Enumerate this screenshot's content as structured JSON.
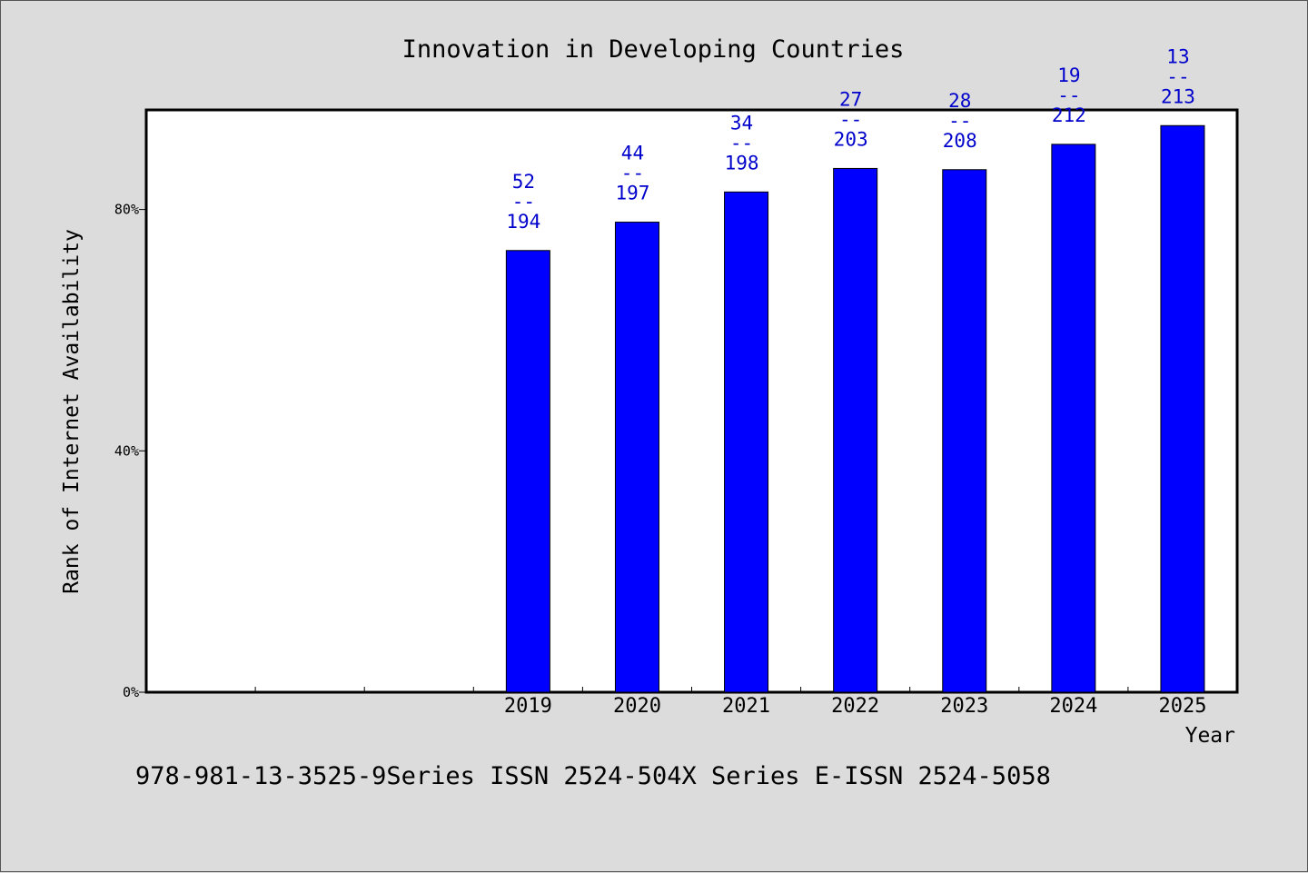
{
  "chart_data": {
    "type": "bar",
    "title": "Innovation in Developing Countries",
    "xlabel": "Year",
    "ylabel": "Rank of Internet Availability",
    "y_tick_labels": [
      "0%",
      "40%",
      "80%"
    ],
    "y_tick_values": [
      0,
      40,
      80
    ],
    "ylim": [
      0,
      96.5
    ],
    "x_slots": 10,
    "categories": [
      "2019",
      "2020",
      "2021",
      "2022",
      "2023",
      "2024",
      "2025"
    ],
    "first_category_slot": 3,
    "values": [
      73.2,
      77.9,
      82.9,
      86.8,
      86.6,
      90.8,
      93.9
    ],
    "data_labels": [
      {
        "top": "52",
        "sep": "--",
        "bottom": "194"
      },
      {
        "top": "44",
        "sep": "--",
        "bottom": "197"
      },
      {
        "top": "34",
        "sep": "--",
        "bottom": "198"
      },
      {
        "top": "27",
        "sep": "--",
        "bottom": "203"
      },
      {
        "top": "28",
        "sep": "--",
        "bottom": "208"
      },
      {
        "top": "19",
        "sep": "--",
        "bottom": "212"
      },
      {
        "top": "13",
        "sep": "--",
        "bottom": "213"
      }
    ],
    "bar_color": "#0000ff",
    "label_color": "#0000cc",
    "grid": false,
    "legend": "none"
  },
  "footer": "978-981-13-3525-9Series ISSN 2524-504X Series E-ISSN 2524-5058"
}
